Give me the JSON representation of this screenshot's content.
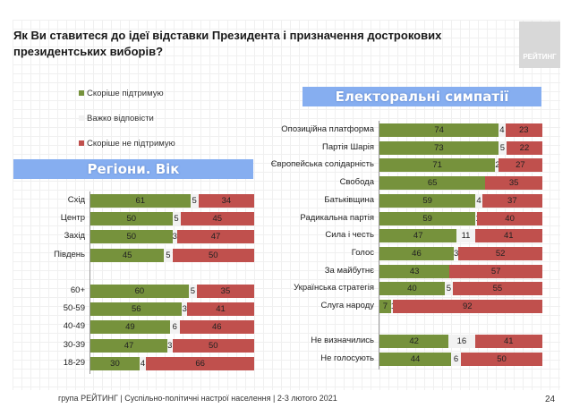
{
  "header": {
    "title": "Як Ви ставитеся до ідеї відставки Президента і призначення дострокових президентських виборів?",
    "logo_text": "РЕЙТИНГ"
  },
  "colors": {
    "support": "#76923c",
    "hard": "#f2f2f2",
    "oppose": "#c0504d",
    "header_bg": "#86aef0"
  },
  "legend": [
    "Скоріше  підтримую",
    "Важко відповісти",
    "Скоріше  не підтримую"
  ],
  "chart_data": [
    {
      "type": "bar",
      "orientation": "horizontal",
      "stacked": true,
      "title": "Регіони. Вік",
      "series_names": [
        "Скоріше  підтримую",
        "Важко відповісти",
        "Скоріше  не підтримую"
      ],
      "categories": [
        "Схід",
        "Центр",
        "Захід",
        "Південь",
        "",
        "60+",
        "50-59",
        "40-49",
        "30-39",
        "18-29"
      ],
      "values": [
        [
          61,
          5,
          34
        ],
        [
          50,
          5,
          45
        ],
        [
          50,
          3,
          47
        ],
        [
          45,
          5,
          50
        ],
        null,
        [
          60,
          5,
          35
        ],
        [
          56,
          3,
          41
        ],
        [
          49,
          6,
          46
        ],
        [
          47,
          3,
          50
        ],
        [
          30,
          4,
          66
        ]
      ],
      "xlim": [
        0,
        100
      ]
    },
    {
      "type": "bar",
      "orientation": "horizontal",
      "stacked": true,
      "title": "Електоральні симпатії",
      "series_names": [
        "Скоріше  підтримую",
        "Важко відповісти",
        "Скоріше  не підтримую"
      ],
      "categories": [
        "Опозиційна платформа",
        "Партія Шарія",
        "Європейська солідарність",
        "Свобода",
        "Батьківщина",
        "Радикальна партія",
        "Сила і честь",
        "Голос",
        "За майбутнє",
        "Українська стратегія",
        "Слуга народу",
        "",
        "Не визначились",
        "Не голосують"
      ],
      "values": [
        [
          74,
          4,
          23
        ],
        [
          73,
          5,
          22
        ],
        [
          71,
          2,
          27
        ],
        [
          65,
          0,
          35
        ],
        [
          59,
          4,
          37
        ],
        [
          59,
          1,
          40
        ],
        [
          47,
          11,
          41
        ],
        [
          46,
          3,
          52
        ],
        [
          43,
          0,
          57
        ],
        [
          40,
          5,
          55
        ],
        [
          7,
          1,
          92
        ],
        null,
        [
          42,
          16,
          41
        ],
        [
          44,
          6,
          50
        ]
      ],
      "xlim": [
        0,
        100
      ]
    }
  ],
  "footer": {
    "text": "група РЕЙТИНГ | Суспільно-політичні настрої населення  | 2-3 лютого 2021",
    "page": "24"
  }
}
